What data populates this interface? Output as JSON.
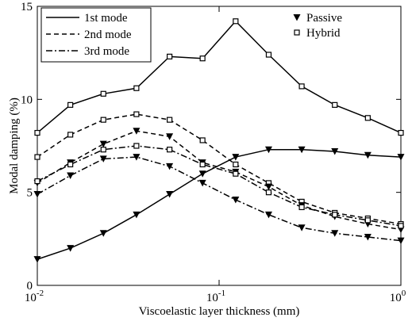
{
  "chart_data": {
    "type": "line",
    "xlabel": "Viscoelastic layer thickness (mm)",
    "ylabel": "Modal damping (%)",
    "xscale": "log",
    "xlim": [
      0.01,
      1
    ],
    "ylim": [
      0,
      15
    ],
    "xticks": [
      {
        "value": 0.01,
        "label": "10",
        "exponent": "-2"
      },
      {
        "value": 0.1,
        "label": "10",
        "exponent": "-1"
      },
      {
        "value": 1,
        "label": "10",
        "exponent": "0"
      }
    ],
    "yticks": [
      0,
      5,
      10,
      15
    ],
    "modes": [
      {
        "name": "1st mode",
        "dash": "solid"
      },
      {
        "name": "2nd mode",
        "dash": "dashed"
      },
      {
        "name": "3rd mode",
        "dash": "dashdot"
      }
    ],
    "markers": [
      {
        "name": "Passive",
        "symbol": "triangle"
      },
      {
        "name": "Hybrid",
        "symbol": "square"
      }
    ],
    "color": "#000000",
    "x": [
      0.01,
      0.0152,
      0.0231,
      0.0351,
      0.0534,
      0.0811,
      0.1233,
      0.1874,
      0.2848,
      0.4329,
      0.6579,
      1
    ],
    "series": [
      {
        "mode": 0,
        "marker": 1,
        "values": [
          8.2,
          9.7,
          10.3,
          10.6,
          12.3,
          12.2,
          14.2,
          12.4,
          10.7,
          9.7,
          9.0,
          8.2
        ]
      },
      {
        "mode": 0,
        "marker": 0,
        "values": [
          1.4,
          2.0,
          2.8,
          3.8,
          4.9,
          6.0,
          6.9,
          7.3,
          7.3,
          7.2,
          7.0,
          6.9
        ]
      },
      {
        "mode": 1,
        "marker": 1,
        "values": [
          6.9,
          8.1,
          8.9,
          9.2,
          8.9,
          7.8,
          6.5,
          5.5,
          4.5,
          3.9,
          3.6,
          3.3
        ]
      },
      {
        "mode": 1,
        "marker": 0,
        "values": [
          5.5,
          6.6,
          7.6,
          8.3,
          8.0,
          6.6,
          6.1,
          5.3,
          4.3,
          3.7,
          3.3,
          3.0
        ]
      },
      {
        "mode": 2,
        "marker": 1,
        "values": [
          5.6,
          6.5,
          7.3,
          7.5,
          7.3,
          6.5,
          6.0,
          5.0,
          4.2,
          3.8,
          3.5,
          3.2
        ]
      },
      {
        "mode": 2,
        "marker": 0,
        "values": [
          4.9,
          5.9,
          6.8,
          6.9,
          6.4,
          5.5,
          4.6,
          3.8,
          3.1,
          2.8,
          2.6,
          2.4
        ]
      }
    ]
  }
}
